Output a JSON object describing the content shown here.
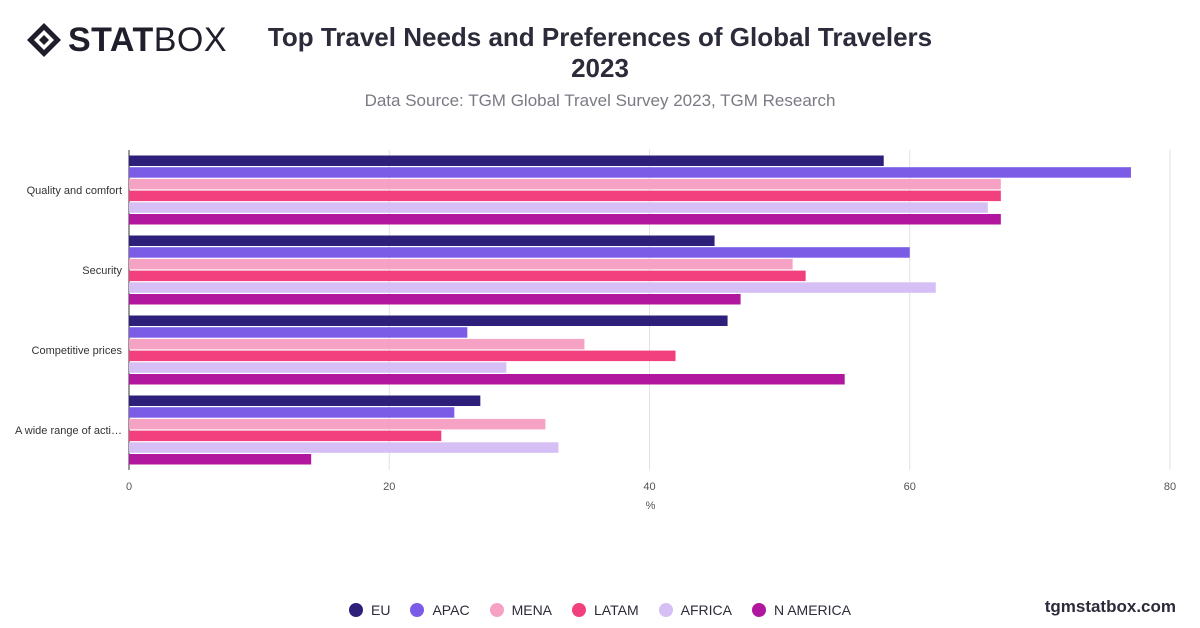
{
  "brand": {
    "logo_strong": "STAT",
    "logo_light": "BOX",
    "footer": "tgmstatbox.com"
  },
  "chart_data": {
    "type": "bar",
    "orientation": "horizontal",
    "title": "Top Travel Needs and Preferences of Global Travelers 2023",
    "title_line1": "Top Travel Needs and Preferences of Global Travelers",
    "title_line2": "2023",
    "subtitle": "Data Source: TGM Global Travel Survey 2023, TGM Research",
    "xlabel": "%",
    "ylabel": "",
    "xlim": [
      0,
      80
    ],
    "xticks": [
      0,
      20,
      40,
      60,
      80
    ],
    "grid": true,
    "legend_position": "bottom",
    "categories": [
      "Quality and comfort",
      "Security",
      "Competitive prices",
      "A wide range of acti…"
    ],
    "series": [
      {
        "name": "EU",
        "color": "#2e1f7a",
        "values": [
          58,
          45,
          46,
          27
        ]
      },
      {
        "name": "APAC",
        "color": "#7b5ce6",
        "values": [
          77,
          60,
          26,
          25
        ]
      },
      {
        "name": "MENA",
        "color": "#f6a2c4",
        "values": [
          67,
          51,
          35,
          32
        ]
      },
      {
        "name": "LATAM",
        "color": "#f2407f",
        "values": [
          67,
          52,
          42,
          24
        ]
      },
      {
        "name": "AFRICA",
        "color": "#d5bff5",
        "values": [
          66,
          62,
          29,
          33
        ]
      },
      {
        "name": "N AMERICA",
        "color": "#b1179e",
        "values": [
          67,
          47,
          55,
          14
        ]
      }
    ]
  }
}
